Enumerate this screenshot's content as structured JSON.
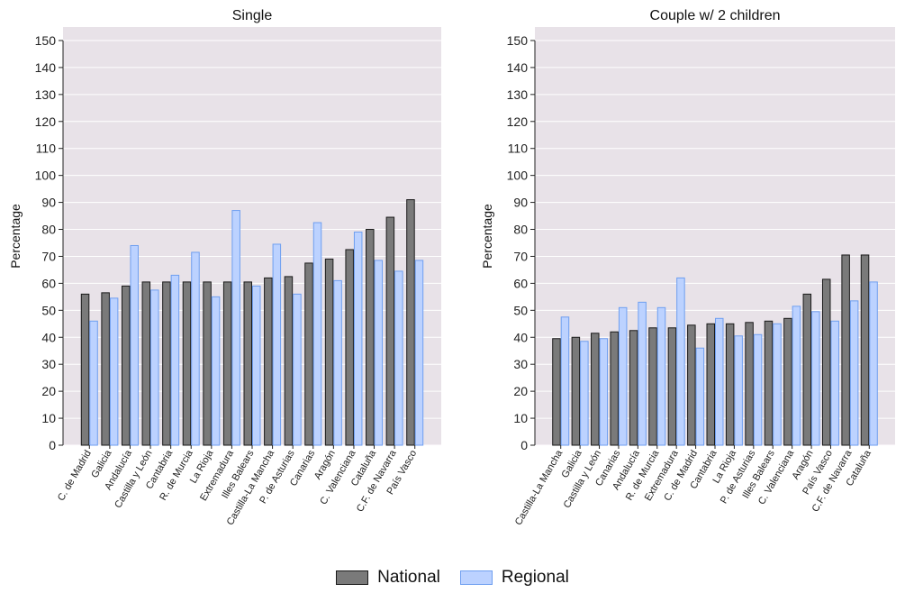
{
  "colors": {
    "national": "#7a7a7a",
    "national_stroke": "#1a1a1a",
    "regional": "#bcd2ff",
    "regional_stroke": "#6f9ff0",
    "panel_bg": "#e8e2e8",
    "grid": "#ffffff"
  },
  "legend": {
    "national": "National",
    "regional": "Regional"
  },
  "chart_data": [
    {
      "type": "bar",
      "title": "Single",
      "ylabel": "Percentage",
      "xlabel": "",
      "ylim": [
        0,
        155
      ],
      "yticks": [
        0,
        10,
        20,
        30,
        40,
        50,
        60,
        70,
        80,
        90,
        100,
        110,
        120,
        130,
        140,
        150
      ],
      "grid": true,
      "legend_position": "bottom",
      "categories": [
        "C. de Madrid",
        "Galicia",
        "Andalucía",
        "Castilla y León",
        "Cantabria",
        "R. de Murcia",
        "La Rioja",
        "Extremadura",
        "Illes Balears",
        "Castilla-La Mancha",
        "P. de Asturias",
        "Canarias",
        "Aragón",
        "C. Valenciana",
        "Cataluña",
        "C.F. de Navarra",
        "País Vasco"
      ],
      "series": [
        {
          "name": "National",
          "values": [
            56,
            56.5,
            59,
            60.5,
            60.5,
            60.5,
            60.5,
            60.5,
            60.5,
            62,
            62.5,
            67.5,
            69,
            72.5,
            80,
            84.5,
            91
          ]
        },
        {
          "name": "Regional",
          "values": [
            46,
            54.5,
            74,
            57.5,
            63,
            71.5,
            55,
            87,
            59,
            74.5,
            56,
            82.5,
            61,
            79,
            68.5,
            64.5,
            68.5
          ]
        }
      ]
    },
    {
      "type": "bar",
      "title": "Couple w/ 2 children",
      "ylabel": "Percentage",
      "xlabel": "",
      "ylim": [
        0,
        155
      ],
      "yticks": [
        0,
        10,
        20,
        30,
        40,
        50,
        60,
        70,
        80,
        90,
        100,
        110,
        120,
        130,
        140,
        150
      ],
      "grid": true,
      "legend_position": "bottom",
      "categories": [
        "Castilla-La Mancha",
        "Galicia",
        "Castilla y León",
        "Canarias",
        "Andalucía",
        "R. de Murcia",
        "Extremadura",
        "C. de Madrid",
        "Cantabria",
        "La Rioja",
        "P. de Asturias",
        "Illes Balears",
        "C. Valenciana",
        "Aragón",
        "País Vasco",
        "C.F. de Navarra",
        "Cataluña"
      ],
      "series": [
        {
          "name": "National",
          "values": [
            39.5,
            40,
            41.5,
            42,
            42.5,
            43.5,
            43.5,
            44.5,
            45,
            45,
            45.5,
            46,
            47,
            56,
            61.5,
            70.5,
            70.5
          ]
        },
        {
          "name": "Regional",
          "values": [
            47.5,
            38.5,
            39.5,
            51,
            53,
            51,
            62,
            36,
            47,
            40.5,
            41,
            45,
            51.5,
            49.5,
            46,
            53.5,
            60.5
          ]
        }
      ]
    }
  ]
}
